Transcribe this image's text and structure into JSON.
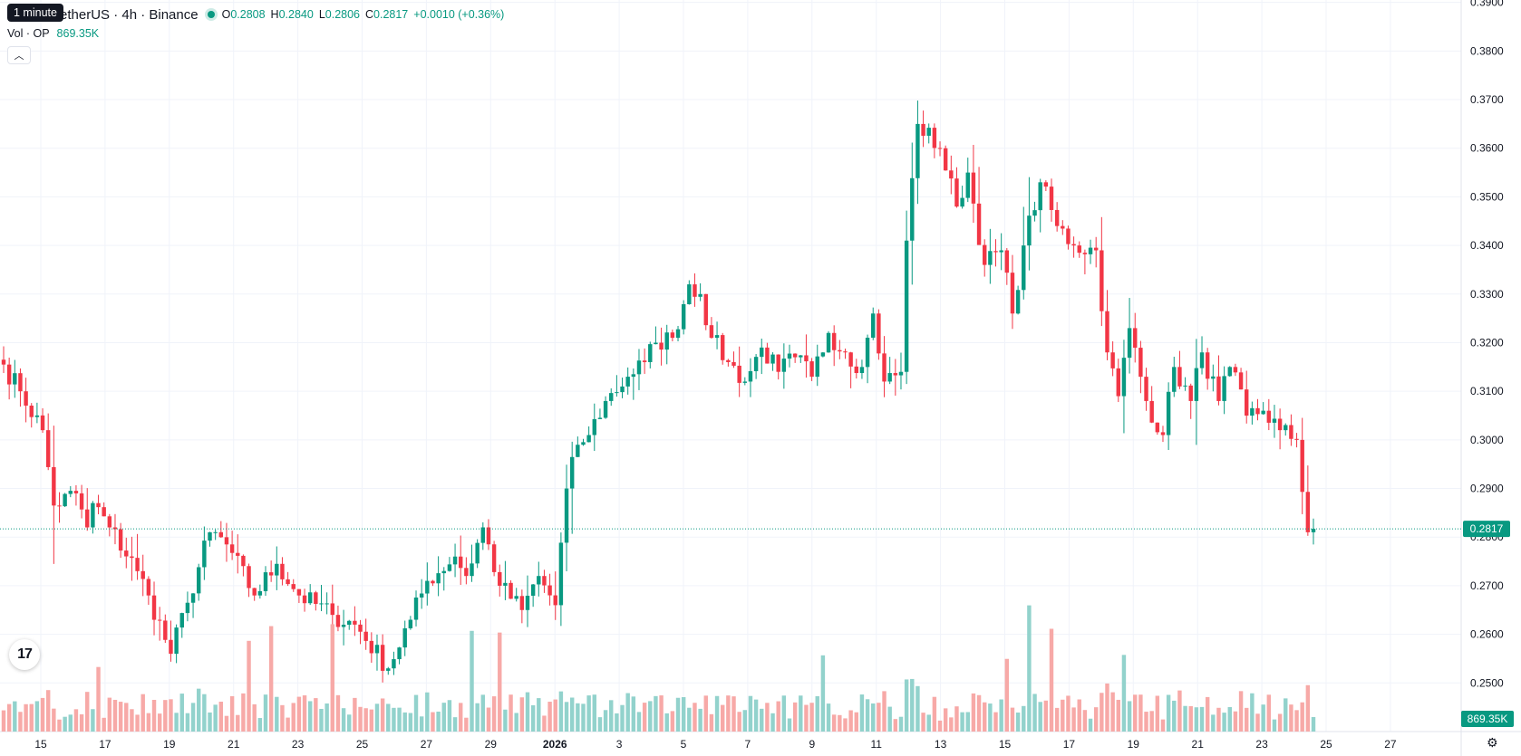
{
  "header": {
    "tooltip": "1 minute",
    "symbol": "etherUS · 4h · Binance",
    "ohlc": {
      "o_label": "O",
      "o": "0.2808",
      "h_label": "H",
      "h": "0.2840",
      "l_label": "L",
      "l": "0.2806",
      "c_label": "C",
      "c": "0.2817"
    },
    "change": "+0.0010 (+0.36%)",
    "volume_label": "Vol · OP",
    "volume_value": "869.35K",
    "collapse_icon": "chevron-up-icon"
  },
  "colors": {
    "up": "#089981",
    "down": "#f23645",
    "up_volume": "#92d2cc",
    "down_volume": "#f7a9a7",
    "last_price": "#089981"
  },
  "chart_data": {
    "type": "candlestick",
    "timeframe": "4h",
    "y_axis": {
      "range": [
        0.24,
        0.3905
      ],
      "ticks": [
        "0.2500",
        "0.2600",
        "0.2700",
        "0.2800",
        "0.2900",
        "0.3000",
        "0.3100",
        "0.3200",
        "0.3300",
        "0.3400",
        "0.3500",
        "0.3600",
        "0.3700",
        "0.3800",
        "0.3900"
      ]
    },
    "x_axis": {
      "ticks": [
        "15",
        "17",
        "19",
        "21",
        "23",
        "25",
        "27",
        "29",
        "2026",
        "3",
        "5",
        "7",
        "9",
        "11",
        "13",
        "15",
        "17",
        "19",
        "21",
        "23",
        "25",
        "27"
      ]
    },
    "last_price_label": "0.2817",
    "last_volume_label": "869.35K",
    "price_path": [
      [
        0,
        0.3155
      ],
      [
        3,
        0.31
      ],
      [
        4,
        0.302
      ],
      [
        2,
        0.2865
      ],
      [
        4,
        0.289
      ],
      [
        2,
        0.282
      ],
      [
        1,
        0.287
      ],
      [
        3,
        0.282
      ],
      [
        5,
        0.273
      ],
      [
        2,
        0.268
      ],
      [
        4,
        0.256
      ],
      [
        3,
        0.2665
      ],
      [
        4,
        0.281
      ],
      [
        3,
        0.2785
      ],
      [
        5,
        0.268
      ],
      [
        4,
        0.2745
      ],
      [
        4,
        0.268
      ],
      [
        6,
        0.264
      ],
      [
        4,
        0.262
      ],
      [
        6,
        0.253
      ],
      [
        4,
        0.263
      ],
      [
        3,
        0.271
      ],
      [
        5,
        0.276
      ],
      [
        2,
        0.272
      ],
      [
        3,
        0.282
      ],
      [
        3,
        0.27
      ],
      [
        4,
        0.265
      ],
      [
        3,
        0.272
      ],
      [
        3,
        0.266
      ],
      [
        2,
        0.29
      ],
      [
        2,
        0.299
      ],
      [
        2,
        0.301
      ],
      [
        3,
        0.308
      ],
      [
        4,
        0.313
      ],
      [
        3,
        0.316
      ],
      [
        2,
        0.32
      ],
      [
        3,
        0.321
      ],
      [
        3,
        0.332
      ],
      [
        2,
        0.33
      ],
      [
        2,
        0.321
      ],
      [
        3,
        0.316
      ],
      [
        3,
        0.312
      ],
      [
        3,
        0.319
      ],
      [
        3,
        0.314
      ],
      [
        3,
        0.317
      ],
      [
        3,
        0.313
      ],
      [
        3,
        0.322
      ],
      [
        3,
        0.318
      ],
      [
        3,
        0.315
      ],
      [
        2,
        0.326
      ],
      [
        2,
        0.312
      ],
      [
        3,
        0.314
      ],
      [
        1,
        0.341
      ],
      [
        2,
        0.365
      ],
      [
        4,
        0.36
      ],
      [
        3,
        0.348
      ],
      [
        2,
        0.355
      ],
      [
        3,
        0.336
      ],
      [
        3,
        0.339
      ],
      [
        2,
        0.326
      ],
      [
        2,
        0.34
      ],
      [
        3,
        0.353
      ],
      [
        3,
        0.344
      ],
      [
        3,
        0.34
      ],
      [
        4,
        0.339
      ],
      [
        2,
        0.318
      ],
      [
        2,
        0.309
      ],
      [
        2,
        0.323
      ],
      [
        3,
        0.308
      ],
      [
        3,
        0.301
      ],
      [
        2,
        0.315
      ],
      [
        3,
        0.308
      ],
      [
        2,
        0.318
      ],
      [
        3,
        0.308
      ],
      [
        2,
        0.315
      ],
      [
        3,
        0.305
      ],
      [
        3,
        0.306
      ],
      [
        3,
        0.302
      ],
      [
        3,
        0.3
      ],
      [
        2,
        0.281
      ],
      [
        1,
        0.2817
      ]
    ]
  }
}
